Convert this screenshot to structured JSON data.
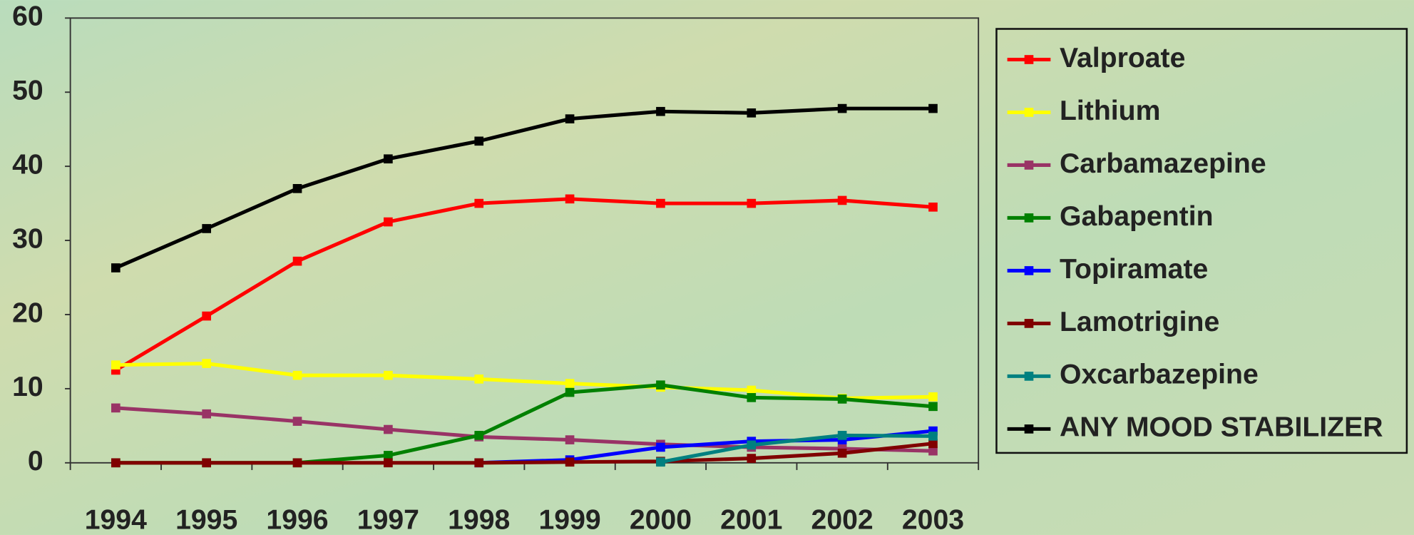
{
  "chart_data": {
    "type": "line",
    "categories": [
      "1994",
      "1995",
      "1996",
      "1997",
      "1998",
      "1999",
      "2000",
      "2001",
      "2002",
      "2003"
    ],
    "series": [
      {
        "name": "Valproate",
        "color": "#ff0000",
        "values": [
          12.5,
          19.8,
          27.2,
          32.5,
          35,
          35.6,
          35,
          35,
          35.4,
          34.5
        ]
      },
      {
        "name": "Lithium",
        "color": "#ffff00",
        "values": [
          13.2,
          13.4,
          11.8,
          11.8,
          11.3,
          10.7,
          10.2,
          9.8,
          8.7,
          8.9
        ]
      },
      {
        "name": "Carbamazepine",
        "color": "#993366",
        "values": [
          7.4,
          6.6,
          5.6,
          4.5,
          3.5,
          3.1,
          2.5,
          2.1,
          1.9,
          1.6
        ]
      },
      {
        "name": "Gabapentin",
        "color": "#008000",
        "values": [
          0,
          0,
          0,
          1,
          3.7,
          9.5,
          10.5,
          8.8,
          8.6,
          7.6
        ]
      },
      {
        "name": "Topiramate",
        "color": "#0000ff",
        "values": [
          null,
          null,
          null,
          null,
          0,
          0.4,
          2.1,
          2.9,
          3.1,
          4.3
        ]
      },
      {
        "name": "Lamotrigine",
        "color": "#800000",
        "values": [
          0,
          0,
          0,
          0,
          0,
          0.1,
          0.2,
          0.6,
          1.3,
          2.6
        ]
      },
      {
        "name": "Oxcarbazepine",
        "color": "#008080",
        "values": [
          null,
          null,
          null,
          null,
          null,
          null,
          0.1,
          2.4,
          3.7,
          3.6
        ]
      },
      {
        "name": "ANY MOOD STABILIZER",
        "color": "#000000",
        "values": [
          26.3,
          31.6,
          37,
          41,
          43.4,
          46.4,
          47.4,
          47.2,
          47.8,
          47.8
        ]
      }
    ],
    "ylim": [
      0,
      60
    ],
    "yticks": [
      0,
      10,
      20,
      30,
      40,
      50,
      60
    ],
    "legend": "right"
  }
}
